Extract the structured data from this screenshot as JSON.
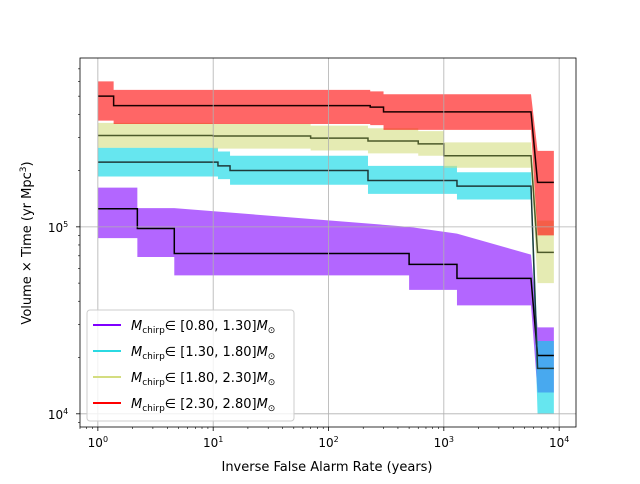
{
  "chart_data": {
    "type": "line",
    "xlabel": "Inverse False Alarm Rate (years)",
    "ylabel": "Volume × Time (yr Mpc",
    "ylabel_sup": "3",
    "ylabel_end": ")",
    "x_scale": "log",
    "y_scale": "log",
    "xlim": [
      0.7,
      14000
    ],
    "ylim": [
      8500,
      800000
    ],
    "grid": true,
    "legend_location": "lower left",
    "xticks": [
      {
        "value": 1,
        "base": "10",
        "exp": "0"
      },
      {
        "value": 10,
        "base": "10",
        "exp": "1"
      },
      {
        "value": 100,
        "base": "10",
        "exp": "2"
      },
      {
        "value": 1000,
        "base": "10",
        "exp": "3"
      },
      {
        "value": 10000,
        "base": "10",
        "exp": "4"
      }
    ],
    "yticks": [
      {
        "value": 10000,
        "base": "10",
        "exp": "4"
      },
      {
        "value": 100000,
        "base": "10",
        "exp": "5"
      }
    ],
    "series": [
      {
        "name_sym": "M",
        "name_sub": "chirp",
        "name_range": "∈ [0.80, 1.30]",
        "name_unit": "M",
        "name_unit_sub": "⊙",
        "color": "#8000ff",
        "line_color": "#000000",
        "legend_color": "#7f00ff",
        "x": [
          1.0,
          1.37,
          1.37,
          2.2,
          2.2,
          4.6,
          4.6,
          500,
          500,
          1300,
          1300,
          5700,
          5700,
          6500,
          6500,
          9000
        ],
        "y": [
          125000,
          125000,
          125000,
          125000,
          98000,
          98000,
          72000,
          72000,
          63000,
          63000,
          53000,
          53000,
          53000,
          20500,
          20500,
          20500
        ],
        "lower": [
          87000,
          87000,
          87000,
          87000,
          69000,
          69000,
          55000,
          55000,
          46000,
          46000,
          38000,
          38000,
          38000,
          13000,
          13000,
          13000
        ],
        "upper": [
          162000,
          162000,
          162000,
          162000,
          126000,
          126000,
          126000,
          100000,
          100000,
          92000,
          92000,
          71000,
          71000,
          29000,
          29000,
          29000
        ]
      },
      {
        "name_sym": "M",
        "name_sub": "chirp",
        "name_range": "∈ [1.30, 1.80]",
        "name_unit": "M",
        "name_unit_sub": "⊙",
        "color": "#00d5e5",
        "line_color": "#1e3a3a",
        "legend_color": "#2bd9e2",
        "x": [
          1.0,
          11,
          11,
          14,
          14,
          220,
          220,
          1300,
          1300,
          5700,
          5700,
          6500,
          6500,
          9000
        ],
        "y": [
          222000,
          222000,
          212000,
          212000,
          200000,
          200000,
          177000,
          177000,
          165000,
          165000,
          165000,
          17500,
          17500,
          17500
        ],
        "lower": [
          186000,
          186000,
          180000,
          180000,
          168000,
          168000,
          150000,
          150000,
          140000,
          140000,
          140000,
          10000,
          10000,
          10000
        ],
        "upper": [
          265000,
          265000,
          253000,
          253000,
          240000,
          240000,
          212000,
          212000,
          196000,
          196000,
          196000,
          24500,
          24500,
          24500
        ]
      },
      {
        "name_sym": "M",
        "name_sub": "chirp",
        "name_range": "∈ [1.80, 2.30]",
        "name_unit": "M",
        "name_unit_sub": "⊙",
        "color": "#d4dd80",
        "line_color": "#4c5a2a",
        "legend_color": "#d4dd80",
        "x": [
          1.0,
          10,
          10,
          70,
          70,
          220,
          220,
          600,
          600,
          1000,
          1000,
          5700,
          5700,
          6500,
          6500,
          9000
        ],
        "y": [
          308000,
          308000,
          306000,
          306000,
          298000,
          298000,
          288000,
          288000,
          278000,
          278000,
          240000,
          240000,
          240000,
          73000,
          73000,
          73000
        ],
        "lower": [
          265000,
          265000,
          262000,
          262000,
          256000,
          256000,
          247000,
          247000,
          240000,
          240000,
          207000,
          207000,
          207000,
          50000,
          50000,
          50000
        ],
        "upper": [
          360000,
          360000,
          356000,
          356000,
          348000,
          348000,
          337000,
          337000,
          325000,
          325000,
          283000,
          283000,
          283000,
          108000,
          108000,
          108000
        ]
      },
      {
        "name_sym": "M",
        "name_sub": "chirp",
        "name_range": "∈ [2.30, 2.80]",
        "name_unit": "M",
        "name_unit_sub": "⊙",
        "color": "#ff0000",
        "line_color": "#1a0000",
        "legend_color": "#ff0000",
        "x": [
          1.0,
          1.37,
          1.37,
          230,
          230,
          300,
          300,
          5700,
          5700,
          6500,
          6500,
          9000
        ],
        "y": [
          500000,
          500000,
          445000,
          445000,
          437000,
          437000,
          412000,
          412000,
          412000,
          173000,
          173000,
          173000
        ],
        "lower": [
          370000,
          370000,
          355000,
          355000,
          350000,
          350000,
          330000,
          330000,
          330000,
          90000,
          90000,
          90000
        ],
        "upper": [
          600000,
          600000,
          540000,
          540000,
          530000,
          530000,
          512000,
          512000,
          512000,
          255000,
          255000,
          255000
        ]
      }
    ]
  }
}
